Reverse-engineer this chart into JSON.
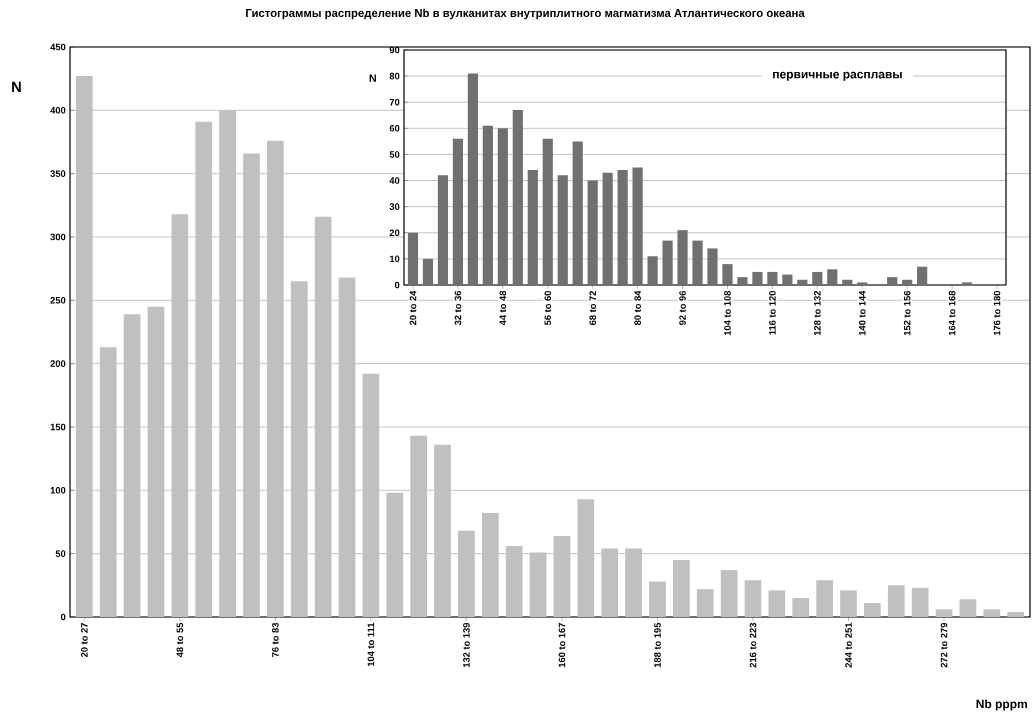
{
  "chart_data": [
    {
      "type": "bar",
      "title": "Гистограммы распределение Nb в вулканитах внутриплитного магматизма Атлантического океана",
      "xlabel": "Nb pppm",
      "ylabel": "N",
      "categories": [
        "20 to 27",
        null,
        null,
        null,
        "48 to 55",
        null,
        null,
        null,
        "76 to 83",
        null,
        null,
        null,
        "104 to 111",
        null,
        null,
        null,
        "132 to 139",
        null,
        null,
        null,
        "160 to 167",
        null,
        null,
        null,
        "188 to 195",
        null,
        null,
        null,
        "216 to 223",
        null,
        null,
        null,
        "244 to 251",
        null,
        null,
        null,
        "272 to 279",
        null,
        null,
        null
      ],
      "values": [
        427,
        213,
        239,
        245,
        318,
        391,
        400,
        366,
        376,
        265,
        316,
        268,
        192,
        98,
        143,
        136,
        68,
        82,
        56,
        51,
        64,
        93,
        54,
        54,
        28,
        45,
        22,
        37,
        29,
        21,
        15,
        29,
        21,
        11,
        25,
        23,
        6,
        14,
        6,
        4
      ],
      "color": "#c0c0c0",
      "ylim": [
        0,
        450
      ],
      "yticks": [
        0,
        50,
        100,
        150,
        200,
        250,
        300,
        350,
        400,
        450
      ],
      "grid": "y"
    },
    {
      "type": "bar",
      "ylabel": "N",
      "annotations": [
        "первичные расплавы"
      ],
      "categories": [
        "20 to 24",
        null,
        null,
        "32 to 36",
        null,
        null,
        "44 to 48",
        null,
        null,
        "56 to 60",
        null,
        null,
        "68 to 72",
        null,
        null,
        "80 to 84",
        null,
        null,
        "92 to 96",
        null,
        null,
        "104 to 108",
        null,
        null,
        "116 to 120",
        null,
        null,
        "128 to 132",
        null,
        null,
        "140 to 144",
        null,
        null,
        "152 to 156",
        null,
        null,
        "164 to 168",
        null,
        null,
        "176 to 180"
      ],
      "values": [
        20,
        10,
        42,
        56,
        81,
        61,
        60,
        67,
        44,
        56,
        42,
        55,
        40,
        43,
        44,
        45,
        11,
        17,
        21,
        17,
        14,
        8,
        3,
        5,
        5,
        4,
        2,
        5,
        6,
        2,
        1,
        0,
        3,
        2,
        7,
        0,
        0,
        1,
        0,
        0
      ],
      "color": "#707070",
      "ylim": [
        0,
        90
      ],
      "yticks": [
        0,
        10,
        20,
        30,
        40,
        50,
        60,
        70,
        80,
        90
      ],
      "grid": "y"
    }
  ]
}
